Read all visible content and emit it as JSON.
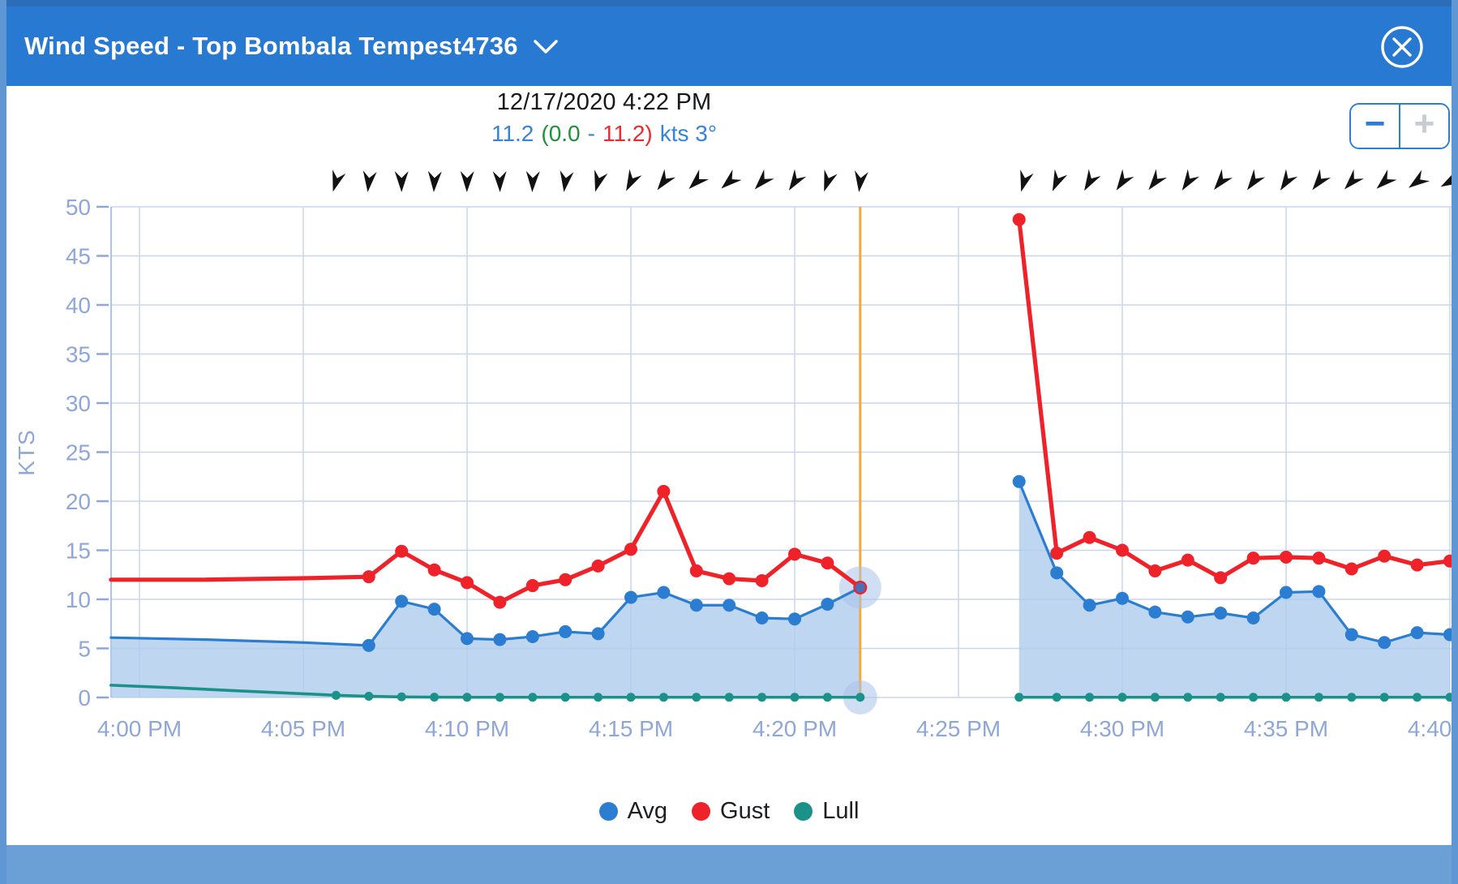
{
  "titlebar": {
    "title": "Wind Speed - Top Bombala Tempest4736"
  },
  "tooltip": {
    "datetime": "12/17/2020 4:22 PM",
    "avg": "11.2",
    "paren_open": "(",
    "lull": "0.0",
    "dash": "-",
    "gust": "11.2",
    "paren_close": ")",
    "suffix": "kts 3°"
  },
  "zoom_control": {
    "zoom_out_label": "−",
    "zoom_in_label": "+"
  },
  "legend": [
    {
      "label": "Avg",
      "color": "#2b7dd2"
    },
    {
      "label": "Gust",
      "color": "#ee2228"
    },
    {
      "label": "Lull",
      "color": "#1a9189"
    }
  ],
  "chart_data": {
    "type": "line",
    "ylabel": "KTS",
    "ylim": [
      0,
      50
    ],
    "yticks": [
      0,
      5,
      10,
      15,
      20,
      25,
      30,
      35,
      40,
      45,
      50
    ],
    "xticks": [
      {
        "t": 0,
        "label": "4:00 PM"
      },
      {
        "t": 5,
        "label": "4:05 PM"
      },
      {
        "t": 10,
        "label": "4:10 PM"
      },
      {
        "t": 15,
        "label": "4:15 PM"
      },
      {
        "t": 20,
        "label": "4:20 PM"
      },
      {
        "t": 25,
        "label": "4:25 PM"
      },
      {
        "t": 30,
        "label": "4:30 PM"
      },
      {
        "t": 35,
        "label": "4:35 PM"
      },
      {
        "t": 40,
        "label": "4:40 PM"
      }
    ],
    "grid": true,
    "legend_position": "bottom",
    "colors": {
      "gridline": "#c8d6ee",
      "axis_line": "#a9bce4",
      "axis_label": "#8fa7d8",
      "cursor": "#f5a83b",
      "halo": "#a9c3e9",
      "area_fill": "#afccec",
      "arrow": "#121212"
    },
    "series": [
      {
        "name": "Avg",
        "color": "#2b7dd2",
        "width": 3.2,
        "marker_r": 8,
        "area": true,
        "area_opacity": 0.8,
        "segments": [
          {
            "markers_from": 3,
            "markers_skip_last": true,
            "points": [
              [
                -0.87,
                6.1
              ],
              [
                2,
                5.9
              ],
              [
                5,
                5.6
              ],
              [
                7,
                5.3
              ],
              [
                8,
                9.8
              ],
              [
                9,
                9.0
              ],
              [
                10,
                6.0
              ],
              [
                11,
                5.9
              ],
              [
                12,
                6.2
              ],
              [
                13,
                6.7
              ],
              [
                14,
                6.5
              ],
              [
                15,
                10.2
              ],
              [
                16,
                10.7
              ],
              [
                17,
                9.4
              ],
              [
                18,
                9.4
              ],
              [
                19,
                8.1
              ],
              [
                20,
                8.0
              ],
              [
                21,
                9.5
              ],
              [
                22,
                11.2
              ]
            ]
          },
          {
            "markers_from": 0,
            "points": [
              [
                26.85,
                22.0
              ],
              [
                28,
                12.7
              ],
              [
                29,
                9.4
              ],
              [
                30,
                10.1
              ],
              [
                31,
                8.7
              ],
              [
                32,
                8.2
              ],
              [
                33,
                8.6
              ],
              [
                34,
                8.1
              ],
              [
                35,
                10.7
              ],
              [
                36,
                10.8
              ],
              [
                37,
                6.4
              ],
              [
                38,
                5.6
              ],
              [
                39,
                6.6
              ],
              [
                40,
                6.4
              ]
            ]
          }
        ]
      },
      {
        "name": "Gust",
        "color": "#ee2228",
        "width": 5.2,
        "marker_r": 8,
        "area": false,
        "segments": [
          {
            "markers_from": 3,
            "markers_skip_last": true,
            "points": [
              [
                -0.87,
                12.0
              ],
              [
                2,
                12.0
              ],
              [
                5,
                12.15
              ],
              [
                7,
                12.3
              ],
              [
                8,
                14.9
              ],
              [
                9,
                13.0
              ],
              [
                10,
                11.7
              ],
              [
                11,
                9.7
              ],
              [
                12,
                11.4
              ],
              [
                13,
                12.0
              ],
              [
                14,
                13.4
              ],
              [
                15,
                15.1
              ],
              [
                16,
                21.0
              ],
              [
                17,
                12.9
              ],
              [
                18,
                12.1
              ],
              [
                19,
                11.9
              ],
              [
                20,
                14.6
              ],
              [
                21,
                13.7
              ],
              [
                22,
                11.2
              ]
            ]
          },
          {
            "markers_from": 0,
            "points": [
              [
                26.85,
                48.7
              ],
              [
                28,
                14.7
              ],
              [
                29,
                16.3
              ],
              [
                30,
                15.0
              ],
              [
                31,
                12.9
              ],
              [
                32,
                14.0
              ],
              [
                33,
                12.2
              ],
              [
                34,
                14.2
              ],
              [
                35,
                14.3
              ],
              [
                36,
                14.2
              ],
              [
                37,
                13.1
              ],
              [
                38,
                14.4
              ],
              [
                39,
                13.5
              ],
              [
                40,
                13.9
              ]
            ]
          }
        ]
      },
      {
        "name": "Lull",
        "color": "#1a9189",
        "width": 3.6,
        "marker_r": 5.5,
        "area": false,
        "segments": [
          {
            "markers_from": 4,
            "points": [
              [
                -0.87,
                1.25
              ],
              [
                1,
                1.0
              ],
              [
                3,
                0.68
              ],
              [
                5,
                0.38
              ],
              [
                6,
                0.22
              ],
              [
                7,
                0.12
              ],
              [
                8,
                0.06
              ],
              [
                9,
                0.03
              ],
              [
                10,
                0.02
              ],
              [
                11,
                0.02
              ],
              [
                12,
                0.02
              ],
              [
                13,
                0.02
              ],
              [
                14,
                0.02
              ],
              [
                15,
                0.02
              ],
              [
                16,
                0.02
              ],
              [
                17,
                0.02
              ],
              [
                18,
                0.02
              ],
              [
                19,
                0.02
              ],
              [
                20,
                0.02
              ],
              [
                21,
                0.02
              ],
              [
                22,
                0.02
              ]
            ]
          },
          {
            "markers_from": 0,
            "points": [
              [
                26.85,
                0.02
              ],
              [
                28,
                0.02
              ],
              [
                29,
                0.02
              ],
              [
                30,
                0.02
              ],
              [
                31,
                0.02
              ],
              [
                32,
                0.02
              ],
              [
                33,
                0.02
              ],
              [
                34,
                0.02
              ],
              [
                35,
                0.02
              ],
              [
                36,
                0.02
              ],
              [
                37,
                0.02
              ],
              [
                38,
                0.02
              ],
              [
                39,
                0.02
              ],
              [
                40,
                0.02
              ]
            ]
          }
        ]
      }
    ],
    "selected": {
      "t": 22,
      "avg": 11.2,
      "gust": 11.2,
      "lull": 0.0
    },
    "wind_arrows": {
      "y": 224,
      "groups": [
        {
          "start_t": 6,
          "angles": [
            197,
            186,
            180,
            183,
            181,
            179,
            182,
            188,
            196,
            207,
            217,
            226,
            229,
            223,
            213,
            199,
            187
          ]
        },
        {
          "start_t": 27,
          "angles": [
            196,
            204,
            210,
            214,
            218,
            213,
            219,
            216,
            213,
            218,
            223,
            228,
            234,
            241
          ]
        }
      ]
    }
  }
}
